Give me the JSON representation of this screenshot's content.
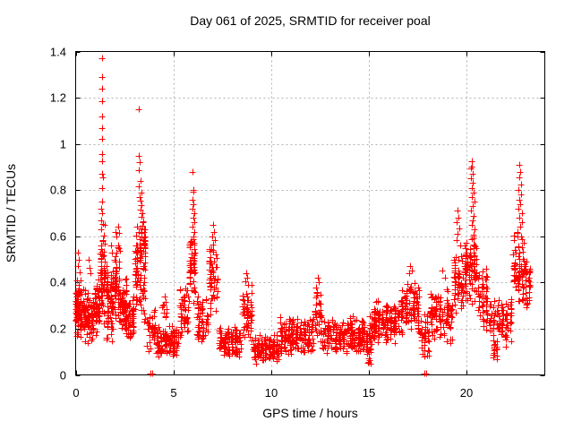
{
  "title": "Day 061 of 2025, SRMTID for receiver poal",
  "chart_data": {
    "type": "scatter",
    "title": "Day 061 of 2025, SRMTID for receiver poal",
    "xlabel": "GPS time / hours",
    "ylabel": "SRMTID / TECUs",
    "xlim": [
      0,
      24
    ],
    "ylim": [
      0,
      1.4
    ],
    "xticks": [
      {
        "v": 0,
        "label": "0"
      },
      {
        "v": 5,
        "label": "5"
      },
      {
        "v": 10,
        "label": "10"
      },
      {
        "v": 15,
        "label": "15"
      },
      {
        "v": 20,
        "label": "20"
      }
    ],
    "yticks": [
      {
        "v": 0,
        "label": "0"
      },
      {
        "v": 0.2,
        "label": "0.2"
      },
      {
        "v": 0.4,
        "label": "0.4"
      },
      {
        "v": 0.6,
        "label": "0.6"
      },
      {
        "v": 0.8,
        "label": "0.8"
      },
      {
        "v": 1,
        "label": "1"
      },
      {
        "v": 1.2,
        "label": "1.2"
      },
      {
        "v": 1.4,
        "label": "1.4"
      }
    ],
    "grid": true,
    "legend": "none",
    "marker": "plus",
    "marker_color": "#ff0000",
    "grid_color": "#b3b3b3",
    "axis_color": "#000000",
    "background": "#ffffff",
    "seed": 2025061,
    "points_format": [
      "x_hours",
      "y_tecus"
    ],
    "points": [
      [
        0.12,
        0.53
      ],
      [
        0.18,
        0.5
      ],
      [
        0.1,
        0.47
      ],
      [
        0.22,
        0.445
      ],
      [
        0.05,
        0.41
      ],
      [
        0.65,
        0.5
      ],
      [
        0.7,
        0.465
      ],
      [
        0.75,
        0.44
      ],
      [
        1.33,
        1.37
      ],
      [
        1.34,
        1.29
      ],
      [
        1.33,
        1.24
      ],
      [
        1.34,
        1.185
      ],
      [
        1.33,
        1.12
      ],
      [
        1.35,
        1.07
      ],
      [
        1.34,
        1.02
      ],
      [
        1.33,
        0.955
      ],
      [
        1.36,
        0.925
      ],
      [
        1.33,
        0.87
      ],
      [
        1.38,
        0.855
      ],
      [
        1.34,
        0.81
      ],
      [
        1.36,
        0.75
      ],
      [
        1.33,
        0.7
      ],
      [
        1.3,
        0.72
      ],
      [
        1.4,
        0.655
      ],
      [
        1.31,
        0.67
      ],
      [
        1.8,
        0.56
      ],
      [
        1.85,
        0.53
      ],
      [
        2.05,
        0.62
      ],
      [
        2.1,
        0.6
      ],
      [
        2.18,
        0.64
      ],
      [
        2.22,
        0.615
      ],
      [
        3.22,
        1.15
      ],
      [
        3.25,
        0.95
      ],
      [
        3.28,
        0.92
      ],
      [
        3.24,
        0.885
      ],
      [
        3.3,
        0.84
      ],
      [
        3.22,
        0.815
      ],
      [
        3.35,
        0.79
      ],
      [
        3.28,
        0.77
      ],
      [
        3.32,
        0.755
      ],
      [
        3.38,
        0.735
      ],
      [
        3.3,
        0.715
      ],
      [
        3.42,
        0.7
      ],
      [
        3.36,
        0.685
      ],
      [
        3.45,
        0.665
      ],
      [
        3.4,
        0.645
      ],
      [
        3.5,
        0.63
      ],
      [
        3.35,
        0.615
      ],
      [
        3.55,
        0.6
      ],
      [
        3.47,
        0.585
      ],
      [
        3.52,
        0.565
      ],
      [
        3.82,
        0.004
      ],
      [
        3.9,
        0.004
      ],
      [
        4.55,
        0.34
      ],
      [
        4.62,
        0.315
      ],
      [
        5.99,
        0.88
      ],
      [
        6.0,
        0.8
      ],
      [
        6.03,
        0.795
      ],
      [
        5.97,
        0.76
      ],
      [
        6.04,
        0.74
      ],
      [
        5.99,
        0.72
      ],
      [
        6.06,
        0.7
      ],
      [
        6.0,
        0.68
      ],
      [
        6.05,
        0.66
      ],
      [
        5.98,
        0.64
      ],
      [
        6.07,
        0.62
      ],
      [
        6.01,
        0.6
      ],
      [
        5.95,
        0.58
      ],
      [
        7.02,
        0.65
      ],
      [
        7.08,
        0.62
      ],
      [
        6.98,
        0.6
      ],
      [
        7.12,
        0.585
      ],
      [
        7.05,
        0.565
      ],
      [
        6.93,
        0.545
      ],
      [
        8.72,
        0.44
      ],
      [
        8.78,
        0.42
      ],
      [
        8.68,
        0.405
      ],
      [
        12.38,
        0.42
      ],
      [
        12.45,
        0.4
      ],
      [
        12.32,
        0.38
      ],
      [
        17.12,
        0.47
      ],
      [
        17.2,
        0.45
      ],
      [
        17.05,
        0.44
      ],
      [
        17.85,
        0.004
      ],
      [
        17.95,
        0.004
      ],
      [
        18.75,
        0.45
      ],
      [
        18.9,
        0.42
      ],
      [
        19.52,
        0.71
      ],
      [
        19.56,
        0.68
      ],
      [
        19.5,
        0.66
      ],
      [
        19.62,
        0.635
      ],
      [
        19.55,
        0.61
      ],
      [
        19.48,
        0.585
      ],
      [
        19.65,
        0.56
      ],
      [
        20.25,
        0.925
      ],
      [
        20.28,
        0.9
      ],
      [
        20.22,
        0.895
      ],
      [
        20.3,
        0.87
      ],
      [
        20.2,
        0.85
      ],
      [
        20.33,
        0.83
      ],
      [
        20.25,
        0.81
      ],
      [
        20.35,
        0.79
      ],
      [
        20.28,
        0.77
      ],
      [
        20.4,
        0.75
      ],
      [
        20.3,
        0.73
      ],
      [
        20.22,
        0.71
      ],
      [
        20.38,
        0.69
      ],
      [
        20.32,
        0.67
      ],
      [
        20.26,
        0.65
      ],
      [
        20.42,
        0.63
      ],
      [
        20.35,
        0.605
      ],
      [
        22.7,
        0.91
      ],
      [
        22.74,
        0.88
      ],
      [
        22.68,
        0.855
      ],
      [
        22.77,
        0.825
      ],
      [
        22.66,
        0.8
      ],
      [
        22.79,
        0.78
      ],
      [
        22.71,
        0.76
      ],
      [
        22.75,
        0.74
      ],
      [
        22.64,
        0.72
      ],
      [
        22.81,
        0.7
      ],
      [
        22.69,
        0.68
      ],
      [
        22.84,
        0.66
      ],
      [
        22.73,
        0.64
      ],
      [
        22.6,
        0.62
      ],
      [
        22.77,
        0.6
      ]
    ],
    "cluster_fields": [
      "x0",
      "x1",
      "y0",
      "y1",
      "n"
    ],
    "clusters": [
      [
        0.0,
        0.12,
        0.2,
        0.38,
        15
      ],
      [
        0.02,
        0.35,
        0.13,
        0.42,
        75
      ],
      [
        0.35,
        0.95,
        0.13,
        0.38,
        90
      ],
      [
        0.95,
        1.25,
        0.16,
        0.45,
        50
      ],
      [
        1.25,
        1.5,
        0.2,
        0.68,
        55
      ],
      [
        1.5,
        1.95,
        0.14,
        0.5,
        70
      ],
      [
        1.95,
        2.3,
        0.2,
        0.63,
        55
      ],
      [
        2.3,
        2.65,
        0.15,
        0.46,
        55
      ],
      [
        2.65,
        3.0,
        0.12,
        0.35,
        45
      ],
      [
        3.0,
        3.6,
        0.22,
        0.68,
        95
      ],
      [
        3.6,
        4.1,
        0.1,
        0.3,
        40
      ],
      [
        4.1,
        5.3,
        0.07,
        0.22,
        115
      ],
      [
        4.4,
        4.7,
        0.22,
        0.33,
        8
      ],
      [
        5.3,
        5.8,
        0.14,
        0.42,
        45
      ],
      [
        5.8,
        6.15,
        0.28,
        0.63,
        50
      ],
      [
        6.15,
        6.8,
        0.12,
        0.35,
        55
      ],
      [
        6.8,
        7.3,
        0.22,
        0.56,
        50
      ],
      [
        7.3,
        8.5,
        0.07,
        0.22,
        115
      ],
      [
        8.5,
        9.05,
        0.13,
        0.4,
        55
      ],
      [
        9.05,
        10.4,
        0.04,
        0.18,
        125
      ],
      [
        10.4,
        12.2,
        0.08,
        0.26,
        165
      ],
      [
        12.2,
        12.6,
        0.13,
        0.38,
        35
      ],
      [
        12.6,
        15.2,
        0.08,
        0.26,
        230
      ],
      [
        14.95,
        15.15,
        0.03,
        0.2,
        12
      ],
      [
        15.2,
        16.6,
        0.13,
        0.33,
        140
      ],
      [
        16.6,
        17.6,
        0.16,
        0.42,
        100
      ],
      [
        17.6,
        18.1,
        0.05,
        0.28,
        35
      ],
      [
        18.1,
        19.3,
        0.13,
        0.38,
        105
      ],
      [
        19.3,
        19.85,
        0.24,
        0.55,
        50
      ],
      [
        19.85,
        20.55,
        0.3,
        0.64,
        85
      ],
      [
        20.55,
        21.1,
        0.18,
        0.5,
        50
      ],
      [
        21.1,
        22.35,
        0.11,
        0.35,
        95
      ],
      [
        21.35,
        21.6,
        0.06,
        0.15,
        15
      ],
      [
        22.35,
        22.95,
        0.28,
        0.64,
        65
      ],
      [
        22.95,
        23.3,
        0.27,
        0.5,
        30
      ]
    ]
  }
}
